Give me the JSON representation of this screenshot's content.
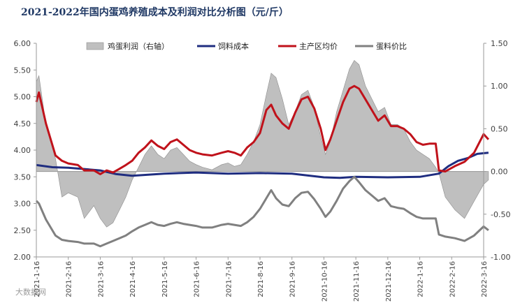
{
  "chart_data": {
    "type": "area",
    "title": "2021-2022年国内蛋鸡养殖成本及利润对比分析图（元/斤）",
    "xlabel": "",
    "ylabel": "",
    "ylim": [
      2.0,
      6.0
    ],
    "y2lim": [
      -1.0,
      1.5
    ],
    "yticks": [
      "6.00",
      "5.50",
      "5.00",
      "4.50",
      "4.00",
      "3.50",
      "3.00",
      "2.50",
      "2.00"
    ],
    "y2ticks": [
      "1.50",
      "1.00",
      "0.50",
      "0.00",
      "-0.50",
      "-1.00"
    ],
    "categories": [
      "2021-1-16",
      "2021-2-16",
      "2021-3-16",
      "2021-4-16",
      "2021-5-16",
      "2021-6-16",
      "2021-7-16",
      "2021-8-16",
      "2021-9-16",
      "2021-10-16",
      "2021-11-16",
      "2021-12-16",
      "2022-1-16",
      "2022-2-16",
      "2022-3-16"
    ],
    "legend_position": "top",
    "grid": false,
    "series": [
      {
        "name": "鸡蛋利润（右轴）",
        "type": "area",
        "axis": "right",
        "color": "#bfbfbf",
        "points": [
          [
            0,
            1.05
          ],
          [
            0.08,
            1.12
          ],
          [
            0.3,
            0.55
          ],
          [
            0.6,
            0.15
          ],
          [
            0.8,
            -0.3
          ],
          [
            1,
            -0.25
          ],
          [
            1.3,
            -0.3
          ],
          [
            1.5,
            -0.55
          ],
          [
            1.8,
            -0.4
          ],
          [
            2,
            -0.55
          ],
          [
            2.2,
            -0.65
          ],
          [
            2.4,
            -0.6
          ],
          [
            2.6,
            -0.45
          ],
          [
            2.8,
            -0.3
          ],
          [
            3,
            -0.1
          ],
          [
            3.2,
            0.05
          ],
          [
            3.4,
            0.2
          ],
          [
            3.6,
            0.3
          ],
          [
            3.8,
            0.2
          ],
          [
            4,
            0.15
          ],
          [
            4.2,
            0.25
          ],
          [
            4.4,
            0.28
          ],
          [
            4.6,
            0.2
          ],
          [
            4.8,
            0.12
          ],
          [
            5,
            0.08
          ],
          [
            5.2,
            0.05
          ],
          [
            5.5,
            0.02
          ],
          [
            5.8,
            0.08
          ],
          [
            6,
            0.1
          ],
          [
            6.2,
            0.06
          ],
          [
            6.4,
            0.08
          ],
          [
            6.6,
            0.2
          ],
          [
            6.8,
            0.35
          ],
          [
            7,
            0.55
          ],
          [
            7.2,
            0.9
          ],
          [
            7.35,
            1.15
          ],
          [
            7.5,
            1.1
          ],
          [
            7.7,
            0.85
          ],
          [
            7.9,
            0.55
          ],
          [
            8.1,
            0.7
          ],
          [
            8.3,
            0.9
          ],
          [
            8.5,
            0.95
          ],
          [
            8.7,
            0.75
          ],
          [
            8.9,
            0.4
          ],
          [
            9.05,
            0.2
          ],
          [
            9.2,
            0.35
          ],
          [
            9.4,
            0.7
          ],
          [
            9.6,
            0.95
          ],
          [
            9.8,
            1.2
          ],
          [
            9.95,
            1.3
          ],
          [
            10.1,
            1.25
          ],
          [
            10.3,
            1.0
          ],
          [
            10.5,
            0.85
          ],
          [
            10.7,
            0.7
          ],
          [
            10.9,
            0.75
          ],
          [
            11.1,
            0.55
          ],
          [
            11.3,
            0.55
          ],
          [
            11.5,
            0.5
          ],
          [
            11.7,
            0.35
          ],
          [
            11.9,
            0.25
          ],
          [
            12.1,
            0.2
          ],
          [
            12.3,
            0.15
          ],
          [
            12.5,
            0.05
          ],
          [
            12.6,
            -0.02
          ],
          [
            12.8,
            -0.3
          ],
          [
            13.1,
            -0.45
          ],
          [
            13.4,
            -0.55
          ],
          [
            13.7,
            -0.35
          ],
          [
            14,
            -0.15
          ],
          [
            14.15,
            -0.1
          ]
        ]
      },
      {
        "name": "饲料成本",
        "type": "line",
        "axis": "left",
        "color": "#1f2d80",
        "points": [
          [
            0,
            3.72
          ],
          [
            0.5,
            3.68
          ],
          [
            1,
            3.67
          ],
          [
            2,
            3.62
          ],
          [
            2.5,
            3.55
          ],
          [
            3,
            3.52
          ],
          [
            4,
            3.56
          ],
          [
            5,
            3.58
          ],
          [
            6,
            3.56
          ],
          [
            7,
            3.57
          ],
          [
            8,
            3.56
          ],
          [
            9,
            3.49
          ],
          [
            9.5,
            3.48
          ],
          [
            10,
            3.5
          ],
          [
            11,
            3.49
          ],
          [
            12,
            3.5
          ],
          [
            12.6,
            3.56
          ],
          [
            12.9,
            3.7
          ],
          [
            13.2,
            3.8
          ],
          [
            13.5,
            3.85
          ],
          [
            13.8,
            3.93
          ],
          [
            14.15,
            3.95
          ]
        ]
      },
      {
        "name": "主产区均价",
        "type": "line",
        "axis": "left",
        "color": "#c0121b",
        "points": [
          [
            0,
            4.9
          ],
          [
            0.08,
            5.08
          ],
          [
            0.3,
            4.5
          ],
          [
            0.6,
            3.9
          ],
          [
            0.8,
            3.8
          ],
          [
            1,
            3.75
          ],
          [
            1.3,
            3.72
          ],
          [
            1.5,
            3.62
          ],
          [
            1.8,
            3.62
          ],
          [
            2,
            3.55
          ],
          [
            2.2,
            3.62
          ],
          [
            2.4,
            3.58
          ],
          [
            2.6,
            3.65
          ],
          [
            2.8,
            3.72
          ],
          [
            3,
            3.8
          ],
          [
            3.2,
            3.95
          ],
          [
            3.4,
            4.05
          ],
          [
            3.6,
            4.18
          ],
          [
            3.8,
            4.08
          ],
          [
            4,
            4.02
          ],
          [
            4.2,
            4.15
          ],
          [
            4.4,
            4.2
          ],
          [
            4.6,
            4.1
          ],
          [
            4.8,
            4.0
          ],
          [
            5,
            3.95
          ],
          [
            5.2,
            3.92
          ],
          [
            5.5,
            3.9
          ],
          [
            5.8,
            3.95
          ],
          [
            6,
            3.98
          ],
          [
            6.2,
            3.95
          ],
          [
            6.4,
            3.9
          ],
          [
            6.6,
            4.05
          ],
          [
            6.8,
            4.15
          ],
          [
            7,
            4.32
          ],
          [
            7.2,
            4.75
          ],
          [
            7.35,
            4.85
          ],
          [
            7.5,
            4.65
          ],
          [
            7.7,
            4.5
          ],
          [
            7.9,
            4.4
          ],
          [
            8.1,
            4.7
          ],
          [
            8.3,
            4.95
          ],
          [
            8.5,
            5.0
          ],
          [
            8.7,
            4.78
          ],
          [
            8.9,
            4.4
          ],
          [
            9.05,
            4.0
          ],
          [
            9.2,
            4.2
          ],
          [
            9.4,
            4.55
          ],
          [
            9.6,
            4.9
          ],
          [
            9.8,
            5.15
          ],
          [
            9.95,
            5.2
          ],
          [
            10.1,
            5.15
          ],
          [
            10.3,
            4.95
          ],
          [
            10.5,
            4.75
          ],
          [
            10.7,
            4.55
          ],
          [
            10.9,
            4.65
          ],
          [
            11.1,
            4.45
          ],
          [
            11.3,
            4.45
          ],
          [
            11.5,
            4.4
          ],
          [
            11.7,
            4.3
          ],
          [
            11.9,
            4.15
          ],
          [
            12.1,
            4.1
          ],
          [
            12.3,
            4.12
          ],
          [
            12.5,
            4.12
          ],
          [
            12.6,
            3.62
          ],
          [
            12.8,
            3.6
          ],
          [
            13.1,
            3.7
          ],
          [
            13.4,
            3.78
          ],
          [
            13.7,
            3.95
          ],
          [
            14.0,
            4.3
          ],
          [
            14.15,
            4.2
          ]
        ]
      },
      {
        "name": "蛋料价比",
        "type": "line",
        "axis": "left",
        "color": "#808080",
        "points": [
          [
            0,
            3.05
          ],
          [
            0.08,
            3.0
          ],
          [
            0.3,
            2.7
          ],
          [
            0.6,
            2.4
          ],
          [
            0.8,
            2.32
          ],
          [
            1,
            2.3
          ],
          [
            1.3,
            2.28
          ],
          [
            1.5,
            2.25
          ],
          [
            1.8,
            2.25
          ],
          [
            2,
            2.2
          ],
          [
            2.2,
            2.25
          ],
          [
            2.4,
            2.3
          ],
          [
            2.6,
            2.35
          ],
          [
            2.8,
            2.4
          ],
          [
            3,
            2.48
          ],
          [
            3.2,
            2.55
          ],
          [
            3.4,
            2.6
          ],
          [
            3.6,
            2.65
          ],
          [
            3.8,
            2.6
          ],
          [
            4,
            2.58
          ],
          [
            4.2,
            2.62
          ],
          [
            4.4,
            2.65
          ],
          [
            4.6,
            2.62
          ],
          [
            4.8,
            2.6
          ],
          [
            5,
            2.58
          ],
          [
            5.2,
            2.55
          ],
          [
            5.5,
            2.55
          ],
          [
            5.8,
            2.6
          ],
          [
            6,
            2.62
          ],
          [
            6.2,
            2.6
          ],
          [
            6.4,
            2.58
          ],
          [
            6.6,
            2.65
          ],
          [
            6.8,
            2.75
          ],
          [
            7,
            2.9
          ],
          [
            7.2,
            3.1
          ],
          [
            7.35,
            3.25
          ],
          [
            7.5,
            3.1
          ],
          [
            7.7,
            2.98
          ],
          [
            7.9,
            2.95
          ],
          [
            8.1,
            3.1
          ],
          [
            8.3,
            3.2
          ],
          [
            8.5,
            3.22
          ],
          [
            8.7,
            3.08
          ],
          [
            8.9,
            2.9
          ],
          [
            9.05,
            2.75
          ],
          [
            9.2,
            2.85
          ],
          [
            9.4,
            3.05
          ],
          [
            9.6,
            3.28
          ],
          [
            9.8,
            3.42
          ],
          [
            9.95,
            3.5
          ],
          [
            10.1,
            3.4
          ],
          [
            10.3,
            3.25
          ],
          [
            10.5,
            3.15
          ],
          [
            10.7,
            3.05
          ],
          [
            10.9,
            3.1
          ],
          [
            11.1,
            2.95
          ],
          [
            11.3,
            2.92
          ],
          [
            11.5,
            2.9
          ],
          [
            11.7,
            2.82
          ],
          [
            11.9,
            2.75
          ],
          [
            12.1,
            2.72
          ],
          [
            12.3,
            2.72
          ],
          [
            12.5,
            2.72
          ],
          [
            12.6,
            2.42
          ],
          [
            12.8,
            2.38
          ],
          [
            13.1,
            2.35
          ],
          [
            13.4,
            2.3
          ],
          [
            13.7,
            2.4
          ],
          [
            14.0,
            2.57
          ],
          [
            14.15,
            2.5
          ]
        ]
      }
    ]
  },
  "watermark": {
    "text": "大数据网"
  }
}
